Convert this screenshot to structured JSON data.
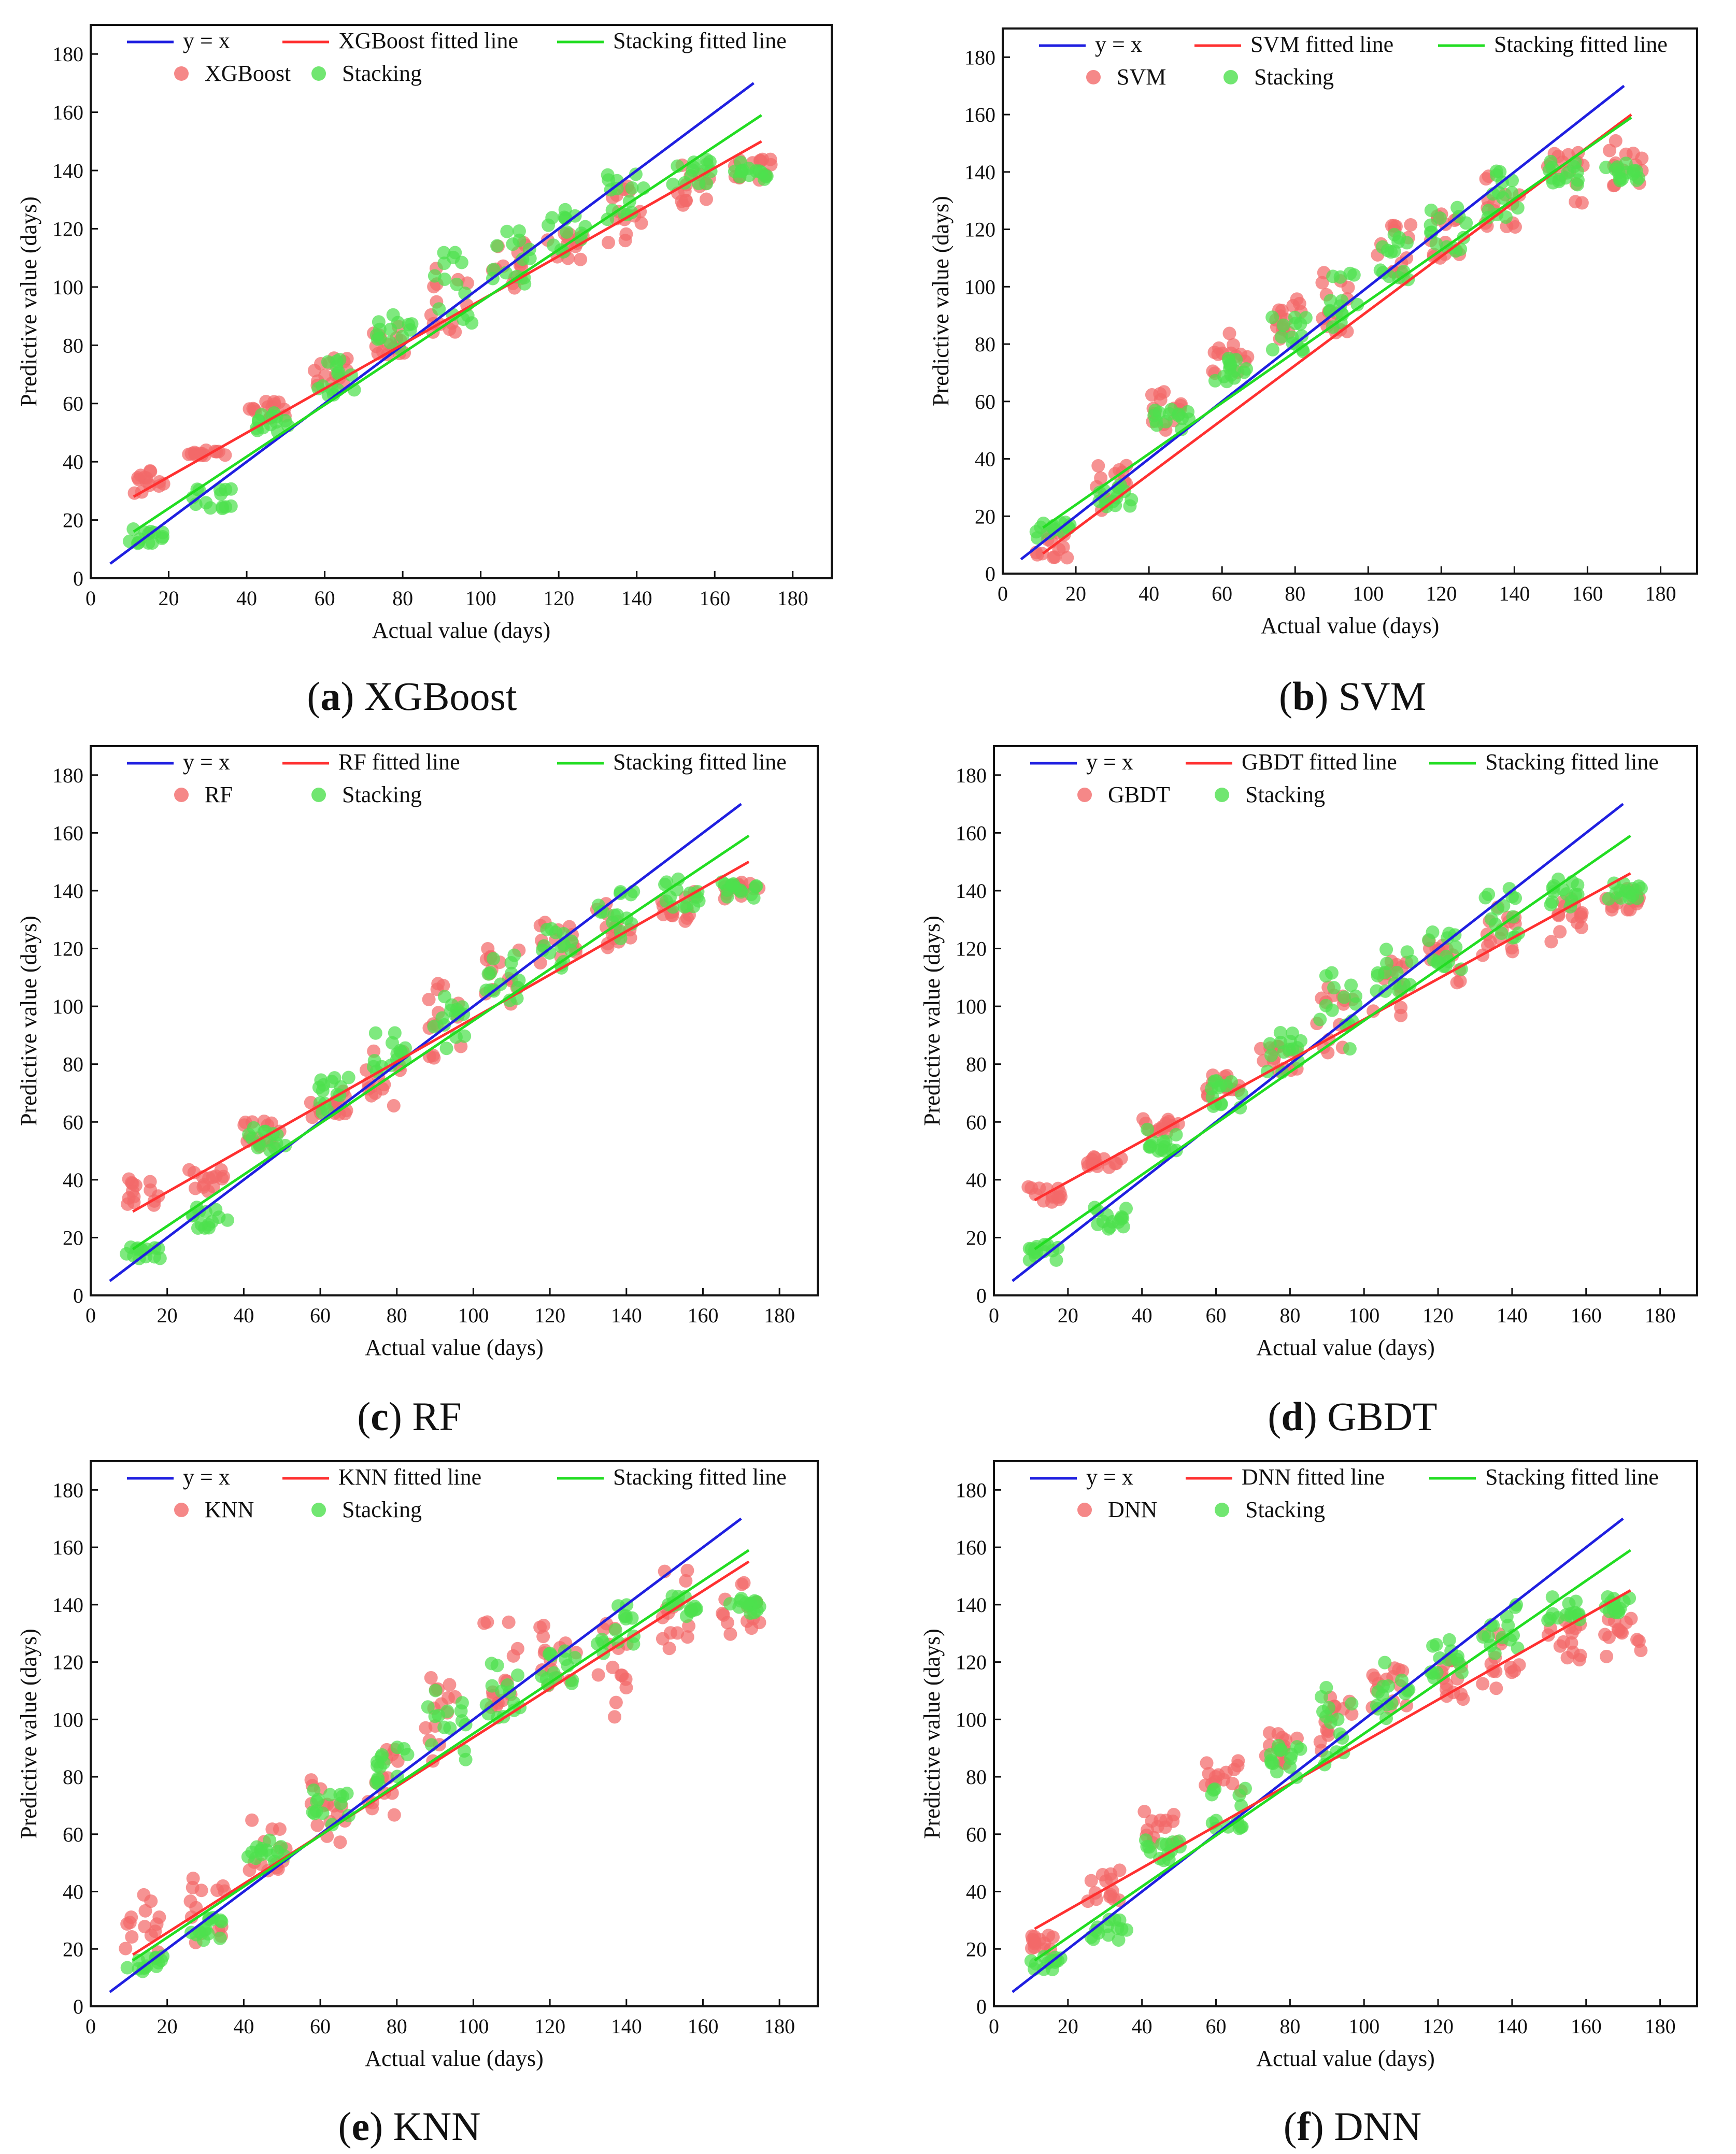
{
  "figure": {
    "colors": {
      "identity": "#1f1fe0",
      "model": "#ff3030",
      "stacking": "#22dd22",
      "model_point": "#f26a6a",
      "stacking_point": "#4de04d",
      "axis": "#111111"
    }
  },
  "chart_data": [
    {
      "id": "a",
      "type": "scatter",
      "caption_letter": "a",
      "caption_text": "XGBoost",
      "xlabel": "Actual value (days)",
      "ylabel": "Predictive value (days)",
      "xlim": [
        0,
        190
      ],
      "ylim": [
        0,
        190
      ],
      "xticks": [
        0,
        20,
        40,
        60,
        80,
        100,
        120,
        140,
        160,
        180
      ],
      "yticks": [
        0,
        20,
        40,
        60,
        80,
        100,
        120,
        140,
        160,
        180
      ],
      "legend": {
        "identity": "y = x",
        "model_line": "XGBoost  fitted line",
        "stacking_line": "Stacking  fitted line",
        "model_points": "XGBoost",
        "stacking_points": "Stacking"
      },
      "lines": {
        "identity": {
          "x": [
            5,
            170
          ],
          "y": [
            5,
            170
          ]
        },
        "model_fit": {
          "x": [
            11,
            172
          ],
          "y": [
            28,
            150
          ]
        },
        "stacking_fit": {
          "x": [
            11,
            172
          ],
          "y": [
            16,
            159
          ]
        }
      },
      "model_bias": 12,
      "model_slope": 0.74,
      "model_noise": 7,
      "model_clusters": [
        {
          "x": 14,
          "y": 33,
          "spread": 4
        },
        {
          "x": 30,
          "y": 43,
          "spread": 1
        },
        {
          "x": 45,
          "y": 58,
          "spread": 3
        },
        {
          "x": 62,
          "y": 71,
          "spread": 5
        },
        {
          "x": 77,
          "y": 82,
          "spread": 6
        },
        {
          "x": 92,
          "y": 95,
          "spread": 12
        },
        {
          "x": 107,
          "y": 107,
          "spread": 9
        },
        {
          "x": 122,
          "y": 113,
          "spread": 6
        },
        {
          "x": 137,
          "y": 125,
          "spread": 10
        },
        {
          "x": 154,
          "y": 134,
          "spread": 8
        },
        {
          "x": 170,
          "y": 140,
          "spread": 4
        }
      ],
      "stacking_clusters": [
        {
          "x": 14,
          "y": 15,
          "spread": 3
        },
        {
          "x": 31,
          "y": 27,
          "spread": 4
        },
        {
          "x": 46,
          "y": 54,
          "spread": 4
        },
        {
          "x": 63,
          "y": 69,
          "spread": 7
        },
        {
          "x": 78,
          "y": 84,
          "spread": 7
        },
        {
          "x": 93,
          "y": 98,
          "spread": 14
        },
        {
          "x": 108,
          "y": 110,
          "spread": 10
        },
        {
          "x": 122,
          "y": 120,
          "spread": 8
        },
        {
          "x": 137,
          "y": 132,
          "spread": 9
        },
        {
          "x": 154,
          "y": 139,
          "spread": 5
        },
        {
          "x": 170,
          "y": 140,
          "spread": 3
        }
      ]
    },
    {
      "id": "b",
      "type": "scatter",
      "caption_letter": "b",
      "caption_text": "SVM",
      "xlabel": "Actual value (days)",
      "ylabel": "Predictive value (days)",
      "xlim": [
        0,
        190
      ],
      "ylim": [
        0,
        190
      ],
      "xticks": [
        0,
        20,
        40,
        60,
        80,
        100,
        120,
        140,
        160,
        180
      ],
      "yticks": [
        0,
        20,
        40,
        60,
        80,
        100,
        120,
        140,
        160,
        180
      ],
      "legend": {
        "identity": "y = x",
        "model_line": "SVM  fitted line",
        "stacking_line": "Stacking  fitted line",
        "model_points": "SVM",
        "stacking_points": "Stacking"
      },
      "lines": {
        "identity": {
          "x": [
            5,
            170
          ],
          "y": [
            5,
            170
          ]
        },
        "model_fit": {
          "x": [
            11,
            172
          ],
          "y": [
            7,
            160
          ]
        },
        "stacking_fit": {
          "x": [
            11,
            172
          ],
          "y": [
            16,
            159
          ]
        }
      },
      "model_clusters": [
        {
          "x": 14,
          "y": 10,
          "spread": 5
        },
        {
          "x": 30,
          "y": 30,
          "spread": 8
        },
        {
          "x": 45,
          "y": 57,
          "spread": 7
        },
        {
          "x": 62,
          "y": 76,
          "spread": 8
        },
        {
          "x": 77,
          "y": 88,
          "spread": 8
        },
        {
          "x": 92,
          "y": 95,
          "spread": 12
        },
        {
          "x": 107,
          "y": 112,
          "spread": 10
        },
        {
          "x": 122,
          "y": 118,
          "spread": 8
        },
        {
          "x": 137,
          "y": 130,
          "spread": 12
        },
        {
          "x": 154,
          "y": 138,
          "spread": 9
        },
        {
          "x": 170,
          "y": 142,
          "spread": 9
        }
      ],
      "stacking_clusters": [
        {
          "x": 14,
          "y": 15,
          "spread": 3
        },
        {
          "x": 31,
          "y": 27,
          "spread": 4
        },
        {
          "x": 46,
          "y": 54,
          "spread": 4
        },
        {
          "x": 63,
          "y": 69,
          "spread": 7
        },
        {
          "x": 78,
          "y": 84,
          "spread": 7
        },
        {
          "x": 93,
          "y": 98,
          "spread": 14
        },
        {
          "x": 108,
          "y": 110,
          "spread": 10
        },
        {
          "x": 122,
          "y": 120,
          "spread": 8
        },
        {
          "x": 137,
          "y": 132,
          "spread": 9
        },
        {
          "x": 154,
          "y": 139,
          "spread": 5
        },
        {
          "x": 170,
          "y": 140,
          "spread": 3
        }
      ]
    },
    {
      "id": "c",
      "type": "scatter",
      "caption_letter": "c",
      "caption_text": "RF",
      "xlabel": "Actual value (days)",
      "ylabel": "Predictive value (days)",
      "xlim": [
        0,
        190
      ],
      "ylim": [
        0,
        190
      ],
      "xticks": [
        0,
        20,
        40,
        60,
        80,
        100,
        120,
        140,
        160,
        180
      ],
      "yticks": [
        0,
        20,
        40,
        60,
        80,
        100,
        120,
        140,
        160,
        180
      ],
      "legend": {
        "identity": "y = x",
        "model_line": "RF fitted line",
        "stacking_line": "Stacking fitted line",
        "model_points": "RF",
        "stacking_points": "Stacking"
      },
      "lines": {
        "identity": {
          "x": [
            5,
            170
          ],
          "y": [
            5,
            170
          ]
        },
        "model_fit": {
          "x": [
            11,
            172
          ],
          "y": [
            29,
            150
          ]
        },
        "stacking_fit": {
          "x": [
            11,
            172
          ],
          "y": [
            16,
            159
          ]
        }
      },
      "model_clusters": [
        {
          "x": 14,
          "y": 37,
          "spread": 6
        },
        {
          "x": 30,
          "y": 40,
          "spread": 4
        },
        {
          "x": 45,
          "y": 56,
          "spread": 5
        },
        {
          "x": 62,
          "y": 66,
          "spread": 5
        },
        {
          "x": 77,
          "y": 75,
          "spread": 10
        },
        {
          "x": 92,
          "y": 92,
          "spread": 16
        },
        {
          "x": 107,
          "y": 110,
          "spread": 10
        },
        {
          "x": 122,
          "y": 122,
          "spread": 7
        },
        {
          "x": 137,
          "y": 128,
          "spread": 10
        },
        {
          "x": 154,
          "y": 134,
          "spread": 6
        },
        {
          "x": 170,
          "y": 140,
          "spread": 4
        }
      ],
      "stacking_clusters": [
        {
          "x": 14,
          "y": 15,
          "spread": 3
        },
        {
          "x": 31,
          "y": 27,
          "spread": 4
        },
        {
          "x": 46,
          "y": 54,
          "spread": 4
        },
        {
          "x": 63,
          "y": 69,
          "spread": 7
        },
        {
          "x": 78,
          "y": 84,
          "spread": 7
        },
        {
          "x": 93,
          "y": 98,
          "spread": 14
        },
        {
          "x": 108,
          "y": 110,
          "spread": 10
        },
        {
          "x": 122,
          "y": 120,
          "spread": 8
        },
        {
          "x": 137,
          "y": 132,
          "spread": 9
        },
        {
          "x": 154,
          "y": 139,
          "spread": 5
        },
        {
          "x": 170,
          "y": 140,
          "spread": 3
        }
      ]
    },
    {
      "id": "d",
      "type": "scatter",
      "caption_letter": "d",
      "caption_text": "GBDT",
      "xlabel": "Actual value (days)",
      "ylabel": "Predictive value (days)",
      "xlim": [
        0,
        190
      ],
      "ylim": [
        0,
        190
      ],
      "xticks": [
        0,
        20,
        40,
        60,
        80,
        100,
        120,
        140,
        160,
        180
      ],
      "yticks": [
        0,
        20,
        40,
        60,
        80,
        100,
        120,
        140,
        160,
        180
      ],
      "legend": {
        "identity": "y = x",
        "model_line": "GBDT fitted line",
        "stacking_line": "Stacking fitted line",
        "model_points": "GBDT",
        "stacking_points": "Stacking"
      },
      "lines": {
        "identity": {
          "x": [
            5,
            170
          ],
          "y": [
            5,
            170
          ]
        },
        "model_fit": {
          "x": [
            11,
            172
          ],
          "y": [
            33,
            146
          ]
        },
        "stacking_fit": {
          "x": [
            11,
            172
          ],
          "y": [
            16,
            159
          ]
        }
      },
      "model_clusters": [
        {
          "x": 14,
          "y": 35,
          "spread": 3
        },
        {
          "x": 30,
          "y": 46,
          "spread": 2
        },
        {
          "x": 45,
          "y": 59,
          "spread": 3
        },
        {
          "x": 62,
          "y": 73,
          "spread": 4
        },
        {
          "x": 77,
          "y": 82,
          "spread": 5
        },
        {
          "x": 92,
          "y": 95,
          "spread": 12
        },
        {
          "x": 107,
          "y": 106,
          "spread": 10
        },
        {
          "x": 122,
          "y": 115,
          "spread": 8
        },
        {
          "x": 137,
          "y": 125,
          "spread": 10
        },
        {
          "x": 154,
          "y": 130,
          "spread": 8
        },
        {
          "x": 170,
          "y": 137,
          "spread": 4
        }
      ],
      "stacking_clusters": [
        {
          "x": 14,
          "y": 15,
          "spread": 3
        },
        {
          "x": 31,
          "y": 27,
          "spread": 4
        },
        {
          "x": 46,
          "y": 54,
          "spread": 4
        },
        {
          "x": 63,
          "y": 69,
          "spread": 7
        },
        {
          "x": 78,
          "y": 84,
          "spread": 7
        },
        {
          "x": 93,
          "y": 98,
          "spread": 14
        },
        {
          "x": 108,
          "y": 110,
          "spread": 10
        },
        {
          "x": 122,
          "y": 120,
          "spread": 8
        },
        {
          "x": 137,
          "y": 132,
          "spread": 9
        },
        {
          "x": 154,
          "y": 139,
          "spread": 5
        },
        {
          "x": 170,
          "y": 140,
          "spread": 3
        }
      ]
    },
    {
      "id": "e",
      "type": "scatter",
      "caption_letter": "e",
      "caption_text": "KNN",
      "xlabel": "Actual value (days)",
      "ylabel": "Predictive value (days)",
      "xlim": [
        0,
        190
      ],
      "ylim": [
        0,
        190
      ],
      "xticks": [
        0,
        20,
        40,
        60,
        80,
        100,
        120,
        140,
        160,
        180
      ],
      "yticks": [
        0,
        20,
        40,
        60,
        80,
        100,
        120,
        140,
        160,
        180
      ],
      "legend": {
        "identity": "y = x",
        "model_line": "KNN fitted line",
        "stacking_line": "Stacking fitted line",
        "model_points": "KNN",
        "stacking_points": "Stacking"
      },
      "lines": {
        "identity": {
          "x": [
            5,
            170
          ],
          "y": [
            5,
            170
          ]
        },
        "model_fit": {
          "x": [
            11,
            172
          ],
          "y": [
            18,
            155
          ]
        },
        "stacking_fit": {
          "x": [
            11,
            172
          ],
          "y": [
            16,
            159
          ]
        }
      },
      "model_clusters": [
        {
          "x": 14,
          "y": 27,
          "spread": 12
        },
        {
          "x": 30,
          "y": 34,
          "spread": 12
        },
        {
          "x": 46,
          "y": 56,
          "spread": 10
        },
        {
          "x": 62,
          "y": 68,
          "spread": 12
        },
        {
          "x": 77,
          "y": 80,
          "spread": 14
        },
        {
          "x": 92,
          "y": 95,
          "spread": 20
        },
        {
          "x": 107,
          "y": 118,
          "spread": 16
        },
        {
          "x": 122,
          "y": 122,
          "spread": 14
        },
        {
          "x": 137,
          "y": 120,
          "spread": 20
        },
        {
          "x": 154,
          "y": 138,
          "spread": 14
        },
        {
          "x": 170,
          "y": 140,
          "spread": 14
        }
      ],
      "stacking_clusters": [
        {
          "x": 14,
          "y": 15,
          "spread": 3
        },
        {
          "x": 31,
          "y": 27,
          "spread": 4
        },
        {
          "x": 46,
          "y": 54,
          "spread": 4
        },
        {
          "x": 63,
          "y": 69,
          "spread": 7
        },
        {
          "x": 78,
          "y": 84,
          "spread": 7
        },
        {
          "x": 93,
          "y": 98,
          "spread": 14
        },
        {
          "x": 108,
          "y": 110,
          "spread": 10
        },
        {
          "x": 122,
          "y": 120,
          "spread": 8
        },
        {
          "x": 137,
          "y": 132,
          "spread": 9
        },
        {
          "x": 154,
          "y": 139,
          "spread": 5
        },
        {
          "x": 170,
          "y": 140,
          "spread": 3
        }
      ]
    },
    {
      "id": "f",
      "type": "scatter",
      "caption_letter": "f",
      "caption_text": "DNN",
      "xlabel": "Actual value (days)",
      "ylabel": "Predictive value (days)",
      "xlim": [
        0,
        190
      ],
      "ylim": [
        0,
        190
      ],
      "xticks": [
        0,
        20,
        40,
        60,
        80,
        100,
        120,
        140,
        160,
        180
      ],
      "yticks": [
        0,
        20,
        40,
        60,
        80,
        100,
        120,
        140,
        160,
        180
      ],
      "legend": {
        "identity": "y = x",
        "model_line": "DNN  fitted line",
        "stacking_line": "Stacking fitted line",
        "model_points": "DNN",
        "stacking_points": "Stacking"
      },
      "lines": {
        "identity": {
          "x": [
            5,
            170
          ],
          "y": [
            5,
            170
          ]
        },
        "model_fit": {
          "x": [
            11,
            172
          ],
          "y": [
            27,
            145
          ]
        },
        "stacking_fit": {
          "x": [
            11,
            172
          ],
          "y": [
            16,
            159
          ]
        }
      },
      "model_clusters": [
        {
          "x": 14,
          "y": 22,
          "spread": 4
        },
        {
          "x": 30,
          "y": 42,
          "spread": 6
        },
        {
          "x": 45,
          "y": 62,
          "spread": 6
        },
        {
          "x": 62,
          "y": 80,
          "spread": 6
        },
        {
          "x": 77,
          "y": 90,
          "spread": 6
        },
        {
          "x": 92,
          "y": 98,
          "spread": 10
        },
        {
          "x": 107,
          "y": 110,
          "spread": 8
        },
        {
          "x": 122,
          "y": 115,
          "spread": 8
        },
        {
          "x": 137,
          "y": 120,
          "spread": 10
        },
        {
          "x": 154,
          "y": 128,
          "spread": 8
        },
        {
          "x": 170,
          "y": 128,
          "spread": 8
        }
      ],
      "stacking_clusters": [
        {
          "x": 14,
          "y": 15,
          "spread": 3
        },
        {
          "x": 31,
          "y": 27,
          "spread": 4
        },
        {
          "x": 46,
          "y": 54,
          "spread": 4
        },
        {
          "x": 63,
          "y": 69,
          "spread": 7
        },
        {
          "x": 78,
          "y": 84,
          "spread": 7
        },
        {
          "x": 93,
          "y": 98,
          "spread": 14
        },
        {
          "x": 108,
          "y": 110,
          "spread": 10
        },
        {
          "x": 122,
          "y": 120,
          "spread": 8
        },
        {
          "x": 137,
          "y": 132,
          "spread": 9
        },
        {
          "x": 154,
          "y": 139,
          "spread": 5
        },
        {
          "x": 170,
          "y": 140,
          "spread": 3
        }
      ]
    }
  ]
}
